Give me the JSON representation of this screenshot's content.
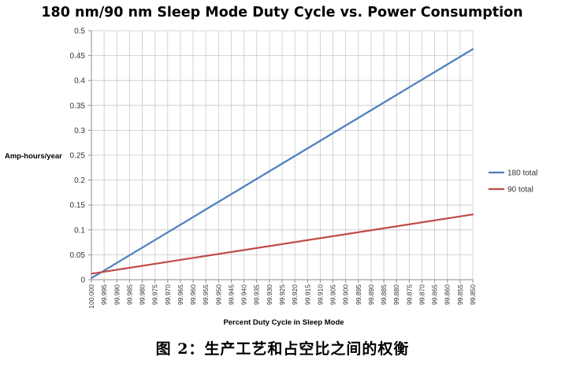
{
  "chart_data": {
    "type": "line",
    "title": "180 nm/90 nm Sleep Mode Duty Cycle vs. Power Consumption",
    "xlabel": "Percent Duty Cycle in Sleep Mode",
    "ylabel": "Amp-hours/year",
    "x_reversed": true,
    "x_ticks": [
      "100.000",
      "99.995",
      "99.990",
      "99.985",
      "99.980",
      "99.975",
      "99.970",
      "99.965",
      "99.960",
      "99.955",
      "99.950",
      "99.945",
      "99.940",
      "99.935",
      "99.930",
      "99.925",
      "99.920",
      "99.915",
      "99.910",
      "99.905",
      "99.900",
      "99.895",
      "99.890",
      "99.885",
      "99.880",
      "99.875",
      "99.870",
      "99.865",
      "99.860",
      "99.855",
      "99.850"
    ],
    "y_ticks": [
      "0",
      "0.05",
      "0.1",
      "0.15",
      "0.2",
      "0.25",
      "0.3",
      "0.35",
      "0.4",
      "0.45",
      "0.5"
    ],
    "ylim": [
      0,
      0.5
    ],
    "grid": true,
    "legend_position": "right",
    "series": [
      {
        "name": "180 total",
        "color": "#4a7ebb",
        "x": [
          100.0,
          99.85
        ],
        "y": [
          0.003,
          0.463
        ]
      },
      {
        "name": "90 total",
        "color": "#be4b48",
        "x": [
          100.0,
          99.85
        ],
        "y": [
          0.012,
          0.131
        ]
      }
    ]
  },
  "caption": "图 2：生产工艺和占空比之间的权衡"
}
